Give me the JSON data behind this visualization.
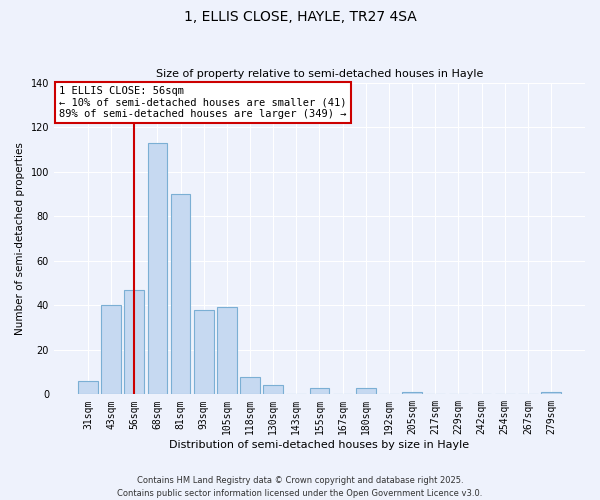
{
  "title": "1, ELLIS CLOSE, HAYLE, TR27 4SA",
  "subtitle": "Size of property relative to semi-detached houses in Hayle",
  "xlabel": "Distribution of semi-detached houses by size in Hayle",
  "ylabel": "Number of semi-detached properties",
  "bar_labels": [
    "31sqm",
    "43sqm",
    "56sqm",
    "68sqm",
    "81sqm",
    "93sqm",
    "105sqm",
    "118sqm",
    "130sqm",
    "143sqm",
    "155sqm",
    "167sqm",
    "180sqm",
    "192sqm",
    "205sqm",
    "217sqm",
    "229sqm",
    "242sqm",
    "254sqm",
    "267sqm",
    "279sqm"
  ],
  "bar_values": [
    6,
    40,
    47,
    113,
    90,
    38,
    39,
    8,
    4,
    0,
    3,
    0,
    3,
    0,
    1,
    0,
    0,
    0,
    0,
    0,
    1
  ],
  "bar_color": "#c6d9f1",
  "bar_edge_color": "#7bafd4",
  "highlight_bar_index": 2,
  "highlight_line_color": "#cc0000",
  "ylim": [
    0,
    140
  ],
  "yticks": [
    0,
    20,
    40,
    60,
    80,
    100,
    120,
    140
  ],
  "annotation_title": "1 ELLIS CLOSE: 56sqm",
  "annotation_line1": "← 10% of semi-detached houses are smaller (41)",
  "annotation_line2": "89% of semi-detached houses are larger (349) →",
  "footer_line1": "Contains HM Land Registry data © Crown copyright and database right 2025.",
  "footer_line2": "Contains public sector information licensed under the Open Government Licence v3.0.",
  "background_color": "#eef2fc",
  "plot_bg_color": "#eef2fc",
  "grid_color": "#ffffff"
}
